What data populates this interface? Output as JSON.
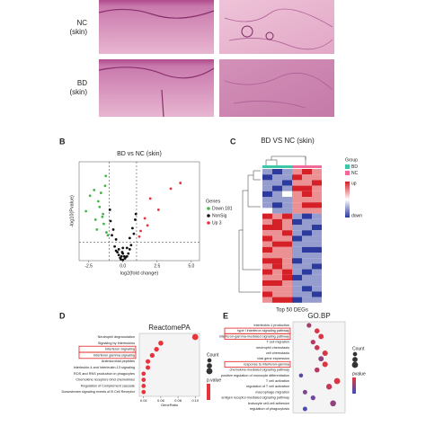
{
  "histology": {
    "rows": [
      {
        "label": [
          "NC",
          "(skin)"
        ]
      },
      {
        "label": [
          "BD",
          "(skin)"
        ]
      }
    ]
  },
  "chart_data": [
    {
      "type": "scatter",
      "panel": "B",
      "title": "BD vs NC (skin)",
      "x_label": "log2(fold change)",
      "y_label": "-log10(Pvalue)",
      "xlim": [
        -3.2,
        5.6
      ],
      "ylim": [
        0,
        7
      ],
      "xticks": [
        -2.5,
        {
          "value": 0,
          "label": "0.0"
        },
        2.5,
        {
          "value": 5,
          "label": "5.0"
        }
      ],
      "cutoffs": {
        "x": [
          -1,
          1
        ],
        "y": 1.3
      },
      "legend_title": "Genes",
      "series": [
        {
          "name": "Down 181",
          "color": "#45b649",
          "x": [
            -1.2,
            -1.5,
            -1.8,
            -2.1,
            -1.4,
            -1.7,
            -2.4,
            -1.1,
            -1.3,
            -2.0,
            -1.6,
            -2.7,
            -1.9,
            -1.25,
            -1.45
          ],
          "y": [
            2.0,
            3.1,
            4.2,
            5.0,
            2.6,
            3.8,
            4.6,
            1.8,
            5.3,
            2.9,
            4.8,
            3.5,
            2.2,
            6.0,
            3.3
          ]
        },
        {
          "name": "NonSig",
          "color": "#111111",
          "x": [
            -0.9,
            -0.7,
            -0.5,
            -0.3,
            -0.1,
            0.1,
            0.3,
            0.5,
            0.7,
            0.9,
            -0.6,
            -0.4,
            -0.2,
            0,
            0.2,
            0.4,
            0.6,
            -0.8,
            0.8,
            -0.3,
            0.3,
            0,
            -0.15,
            0.15,
            -0.5,
            0.5,
            0,
            -0.95,
            0.95,
            -0.05
          ],
          "y": [
            2.8,
            2.2,
            1.5,
            0.8,
            0.3,
            0.3,
            0.9,
            1.6,
            2.3,
            2.9,
            1.0,
            0.6,
            0.2,
            0.05,
            0.25,
            0.5,
            1.1,
            1.8,
            1.9,
            0.4,
            0.3,
            0.5,
            0.1,
            0.15,
            0.7,
            0.8,
            0.9,
            3.6,
            3.3,
            0.6
          ]
        },
        {
          "name": "Up 3",
          "color": "#e8333a",
          "x": [
            1.3,
            1.6,
            2.0,
            2.6,
            3.5,
            4.2,
            1.2,
            1.8
          ],
          "y": [
            2.1,
            3.0,
            4.4,
            3.6,
            5.1,
            5.5,
            1.7,
            2.5
          ]
        }
      ]
    },
    {
      "type": "heatmap",
      "panel": "C",
      "title": "BD VS NC (skin)",
      "x_label": "Top 50 DEGs",
      "legend_title": "Group",
      "groups": [
        {
          "name": "BD",
          "color": "#3cc8a8"
        },
        {
          "name": "NC",
          "color": "#f06a9a"
        }
      ],
      "column_groups": [
        0,
        0,
        0,
        1,
        1,
        1
      ],
      "scale_labels": [
        "up",
        "down"
      ],
      "zlim": [
        -2,
        2
      ],
      "colors": [
        "#2b3a9c",
        "#ffffff",
        "#d62027"
      ],
      "z": [
        [
          -1,
          -2,
          -1,
          1,
          2,
          1
        ],
        [
          -2,
          -1,
          -1,
          2,
          1,
          1
        ],
        [
          -1,
          -1,
          -2,
          1,
          1,
          2
        ],
        [
          -1,
          -2,
          -1,
          2,
          2,
          1
        ],
        [
          -2,
          -1,
          0,
          1,
          2,
          1
        ],
        [
          -1,
          -1,
          -1,
          1,
          1,
          1
        ],
        [
          -1,
          -2,
          -1,
          1,
          2,
          2
        ],
        [
          0,
          -1,
          -1,
          1,
          1,
          1
        ],
        [
          2,
          1,
          2,
          -1,
          -2,
          -1
        ],
        [
          1,
          2,
          1,
          -2,
          -1,
          -1
        ],
        [
          2,
          2,
          1,
          -1,
          -1,
          -2
        ],
        [
          1,
          1,
          2,
          -1,
          -2,
          -1
        ],
        [
          2,
          1,
          1,
          -2,
          -1,
          -1
        ],
        [
          1,
          2,
          2,
          -1,
          -1,
          -1
        ],
        [
          2,
          1,
          1,
          -1,
          -2,
          -2
        ],
        [
          1,
          1,
          1,
          -1,
          -1,
          -1
        ],
        [
          2,
          2,
          1,
          -2,
          -1,
          -1
        ],
        [
          1,
          2,
          1,
          -1,
          -1,
          -2
        ],
        [
          2,
          1,
          2,
          -1,
          -2,
          -1
        ],
        [
          1,
          1,
          2,
          -2,
          -1,
          -1
        ],
        [
          2,
          2,
          1,
          -1,
          -1,
          -1
        ],
        [
          1,
          1,
          1,
          -1,
          -2,
          -1
        ],
        [
          2,
          1,
          1,
          -1,
          -1,
          -2
        ],
        [
          1,
          2,
          2,
          -2,
          -1,
          -1
        ]
      ]
    },
    {
      "type": "dot",
      "panel": "D",
      "title": "ReactomePA",
      "x_label": "GeneRatio",
      "categories": [
        "Neutrophil degranulation",
        "Signaling by Interleukins",
        "Interferon Signaling",
        "Interferon gamma signaling",
        "Antimicrobial peptides",
        "Interleukin-4 and Interleukin-13 signaling",
        "ROS and RNS production in phagocytes",
        "Chemokine receptors bind chemokines",
        "Regulation of Complement cascade",
        "Downstream signaling events of B Cell Receptor"
      ],
      "values": [
        0.1,
        0.06,
        0.055,
        0.05,
        0.045,
        0.045,
        0.04,
        0.04,
        0.04,
        0.04
      ],
      "sizes": [
        14,
        8,
        7,
        7,
        6,
        6,
        5,
        5,
        5,
        5
      ],
      "color": "#e8333a",
      "xlim": [
        0.035,
        0.105
      ],
      "xticks": [
        0.04,
        0.06,
        0.08,
        {
          "value": 0.1,
          "label": "0.10"
        }
      ],
      "highlight": [
        2,
        3
      ],
      "size_title": "Count",
      "color_title": "p.value"
    },
    {
      "type": "dot",
      "panel": "E",
      "title": "GO.BP",
      "categories": [
        "interleukin-1 production",
        "type I interferon signaling pathway",
        "interferon-gamma-mediated signaling pathway",
        "T cell migration",
        "neutrophil chemotaxis",
        "cell chemotaxis",
        "viral gene expression",
        "response to interferon-gamma",
        "chemokine-mediated signaling pathway",
        "positive regulation of monocyte differentiation",
        "T cell activation",
        "regulation of T cell activation",
        "macrophage migration",
        "antigen receptor-mediated signaling pathway",
        "leukocyte cell-cell adhesion",
        "regulation of phagocytosis"
      ],
      "values": [
        0.05,
        0.06,
        0.065,
        0.055,
        0.06,
        0.07,
        0.065,
        0.07,
        0.06,
        0.04,
        0.085,
        0.075,
        0.045,
        0.055,
        0.08,
        0.045
      ],
      "sizes": [
        6,
        7,
        8,
        6,
        7,
        9,
        8,
        9,
        7,
        4,
        12,
        10,
        5,
        6,
        11,
        5
      ],
      "pvalues": [
        0.4,
        0.1,
        0.05,
        0.3,
        0.2,
        0.1,
        0.5,
        0.05,
        0.3,
        0.8,
        0.1,
        0.2,
        0.6,
        0.7,
        0.5,
        0.9
      ],
      "color": "#e8333a",
      "color2": "#3a4fc0",
      "xlim": [
        0.03,
        0.095
      ],
      "highlight": [
        1,
        2,
        7
      ],
      "size_title": "Count",
      "color_title": "pvalue"
    }
  ]
}
